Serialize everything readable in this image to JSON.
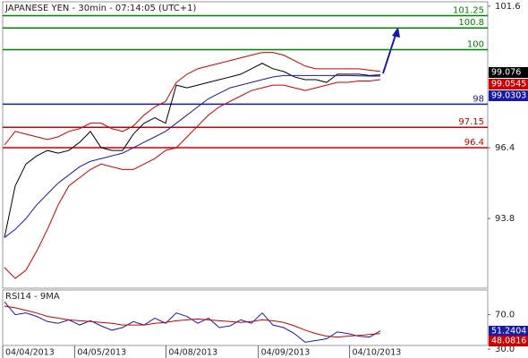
{
  "chart_data": [
    {
      "type": "line",
      "title": "JAPANESE YEN - 30min - 07:14:05 (UTC+1)",
      "xlim": [
        0,
        45
      ],
      "ylim": [
        91.24,
        101.76
      ],
      "xticks": [
        {
          "value": 0,
          "label": "04/04/2013"
        },
        {
          "value": 6.7,
          "label": "04/05/2013"
        },
        {
          "value": 15.2,
          "label": "04/08/2013"
        },
        {
          "value": 23.8,
          "label": "04/09/2013"
        },
        {
          "value": 32.3,
          "label": "04/10/2013"
        }
      ],
      "yticks": [
        101.6,
        96.4,
        93.8
      ],
      "series": [
        {
          "color": "#000000",
          "values": [
            93.1,
            95.0,
            95.8,
            96.1,
            96.3,
            96.2,
            96.3,
            96.6,
            97.0,
            96.4,
            96.3,
            96.3,
            96.9,
            97.3,
            97.5,
            97.3,
            98.7,
            98.6,
            98.7,
            98.8,
            98.9,
            99.0,
            99.1,
            99.3,
            99.5,
            99.3,
            99.2,
            99.0,
            98.9,
            98.9,
            98.8,
            99.1,
            99.1,
            99.1,
            99.05,
            99.076
          ]
        },
        {
          "color": "#1a1aa8",
          "values": [
            93.1,
            93.4,
            93.8,
            94.3,
            94.7,
            95.1,
            95.4,
            95.7,
            95.9,
            96.0,
            96.1,
            96.2,
            96.4,
            96.6,
            96.8,
            97.0,
            97.3,
            97.6,
            97.9,
            98.2,
            98.4,
            98.6,
            98.7,
            98.8,
            98.9,
            99.0,
            99.05,
            99.05,
            99.05,
            99.05,
            99.05,
            99.05,
            99.05,
            99.04,
            99.03,
            99.03
          ]
        },
        {
          "color": "#cc0000",
          "values": [
            96.5,
            97.0,
            96.9,
            96.8,
            96.7,
            96.8,
            97.0,
            97.1,
            97.3,
            97.3,
            97.1,
            97.0,
            97.2,
            97.6,
            97.9,
            98.1,
            98.8,
            99.1,
            99.3,
            99.4,
            99.5,
            99.6,
            99.7,
            99.8,
            99.9,
            99.9,
            99.8,
            99.6,
            99.4,
            99.3,
            99.3,
            99.3,
            99.3,
            99.3,
            99.25,
            99.2
          ]
        },
        {
          "color": "#cc0000",
          "values": [
            92.0,
            91.6,
            91.9,
            92.6,
            93.4,
            94.3,
            95.0,
            95.3,
            95.6,
            95.8,
            95.7,
            95.6,
            95.6,
            95.8,
            96.0,
            96.3,
            96.4,
            96.8,
            97.2,
            97.6,
            97.9,
            98.1,
            98.3,
            98.5,
            98.6,
            98.7,
            98.7,
            98.6,
            98.5,
            98.6,
            98.7,
            98.8,
            98.8,
            98.85,
            98.85,
            98.9
          ]
        }
      ],
      "levels": [
        {
          "value": 101.25,
          "label": "101.25",
          "color": "#008000"
        },
        {
          "value": 100.8,
          "label": "100.8",
          "color": "#008000"
        },
        {
          "value": 100,
          "label": "100",
          "color": "#008000"
        },
        {
          "value": 98,
          "label": "98",
          "color": "#1a1aa8"
        },
        {
          "value": 97.15,
          "label": "97.15",
          "color": "#cc0000"
        },
        {
          "value": 96.4,
          "label": "96.4",
          "color": "#cc0000"
        }
      ],
      "price_tags": [
        {
          "label": "99.076",
          "color": "#000000"
        },
        {
          "label": "99.0545",
          "color": "#cc0000"
        },
        {
          "label": "99.0303",
          "color": "#1a1aa8"
        }
      ]
    },
    {
      "type": "line",
      "title": "RSI14 - 9MA",
      "xlim": [
        0,
        45
      ],
      "ylim": [
        28,
        98.7
      ],
      "yticks": [
        {
          "value": 70,
          "label": "70.0"
        },
        {
          "value": 30,
          "label": "30.0"
        }
      ],
      "series": [
        {
          "color": "#1a1aa8",
          "values": [
            85,
            70,
            72,
            68,
            62,
            60,
            64,
            58,
            63,
            57,
            52,
            55,
            62,
            58,
            66,
            60,
            72,
            68,
            60,
            66,
            55,
            57,
            64,
            60,
            72,
            58,
            55,
            48,
            38,
            40,
            42,
            50,
            48,
            45,
            44,
            51.24
          ]
        },
        {
          "color": "#cc0000",
          "values": [
            80,
            78,
            75,
            72,
            68,
            66,
            64,
            63,
            62,
            61,
            60,
            58,
            58,
            58,
            60,
            61,
            63,
            64,
            65,
            64,
            63,
            62,
            61,
            62,
            64,
            63,
            61,
            57,
            52,
            48,
            45,
            44,
            45,
            46,
            47,
            48.08
          ]
        }
      ],
      "price_tags": [
        {
          "label": "51.2404",
          "color": "#1a1aa8"
        },
        {
          "label": "48.0816",
          "color": "#cc0000"
        }
      ]
    }
  ]
}
